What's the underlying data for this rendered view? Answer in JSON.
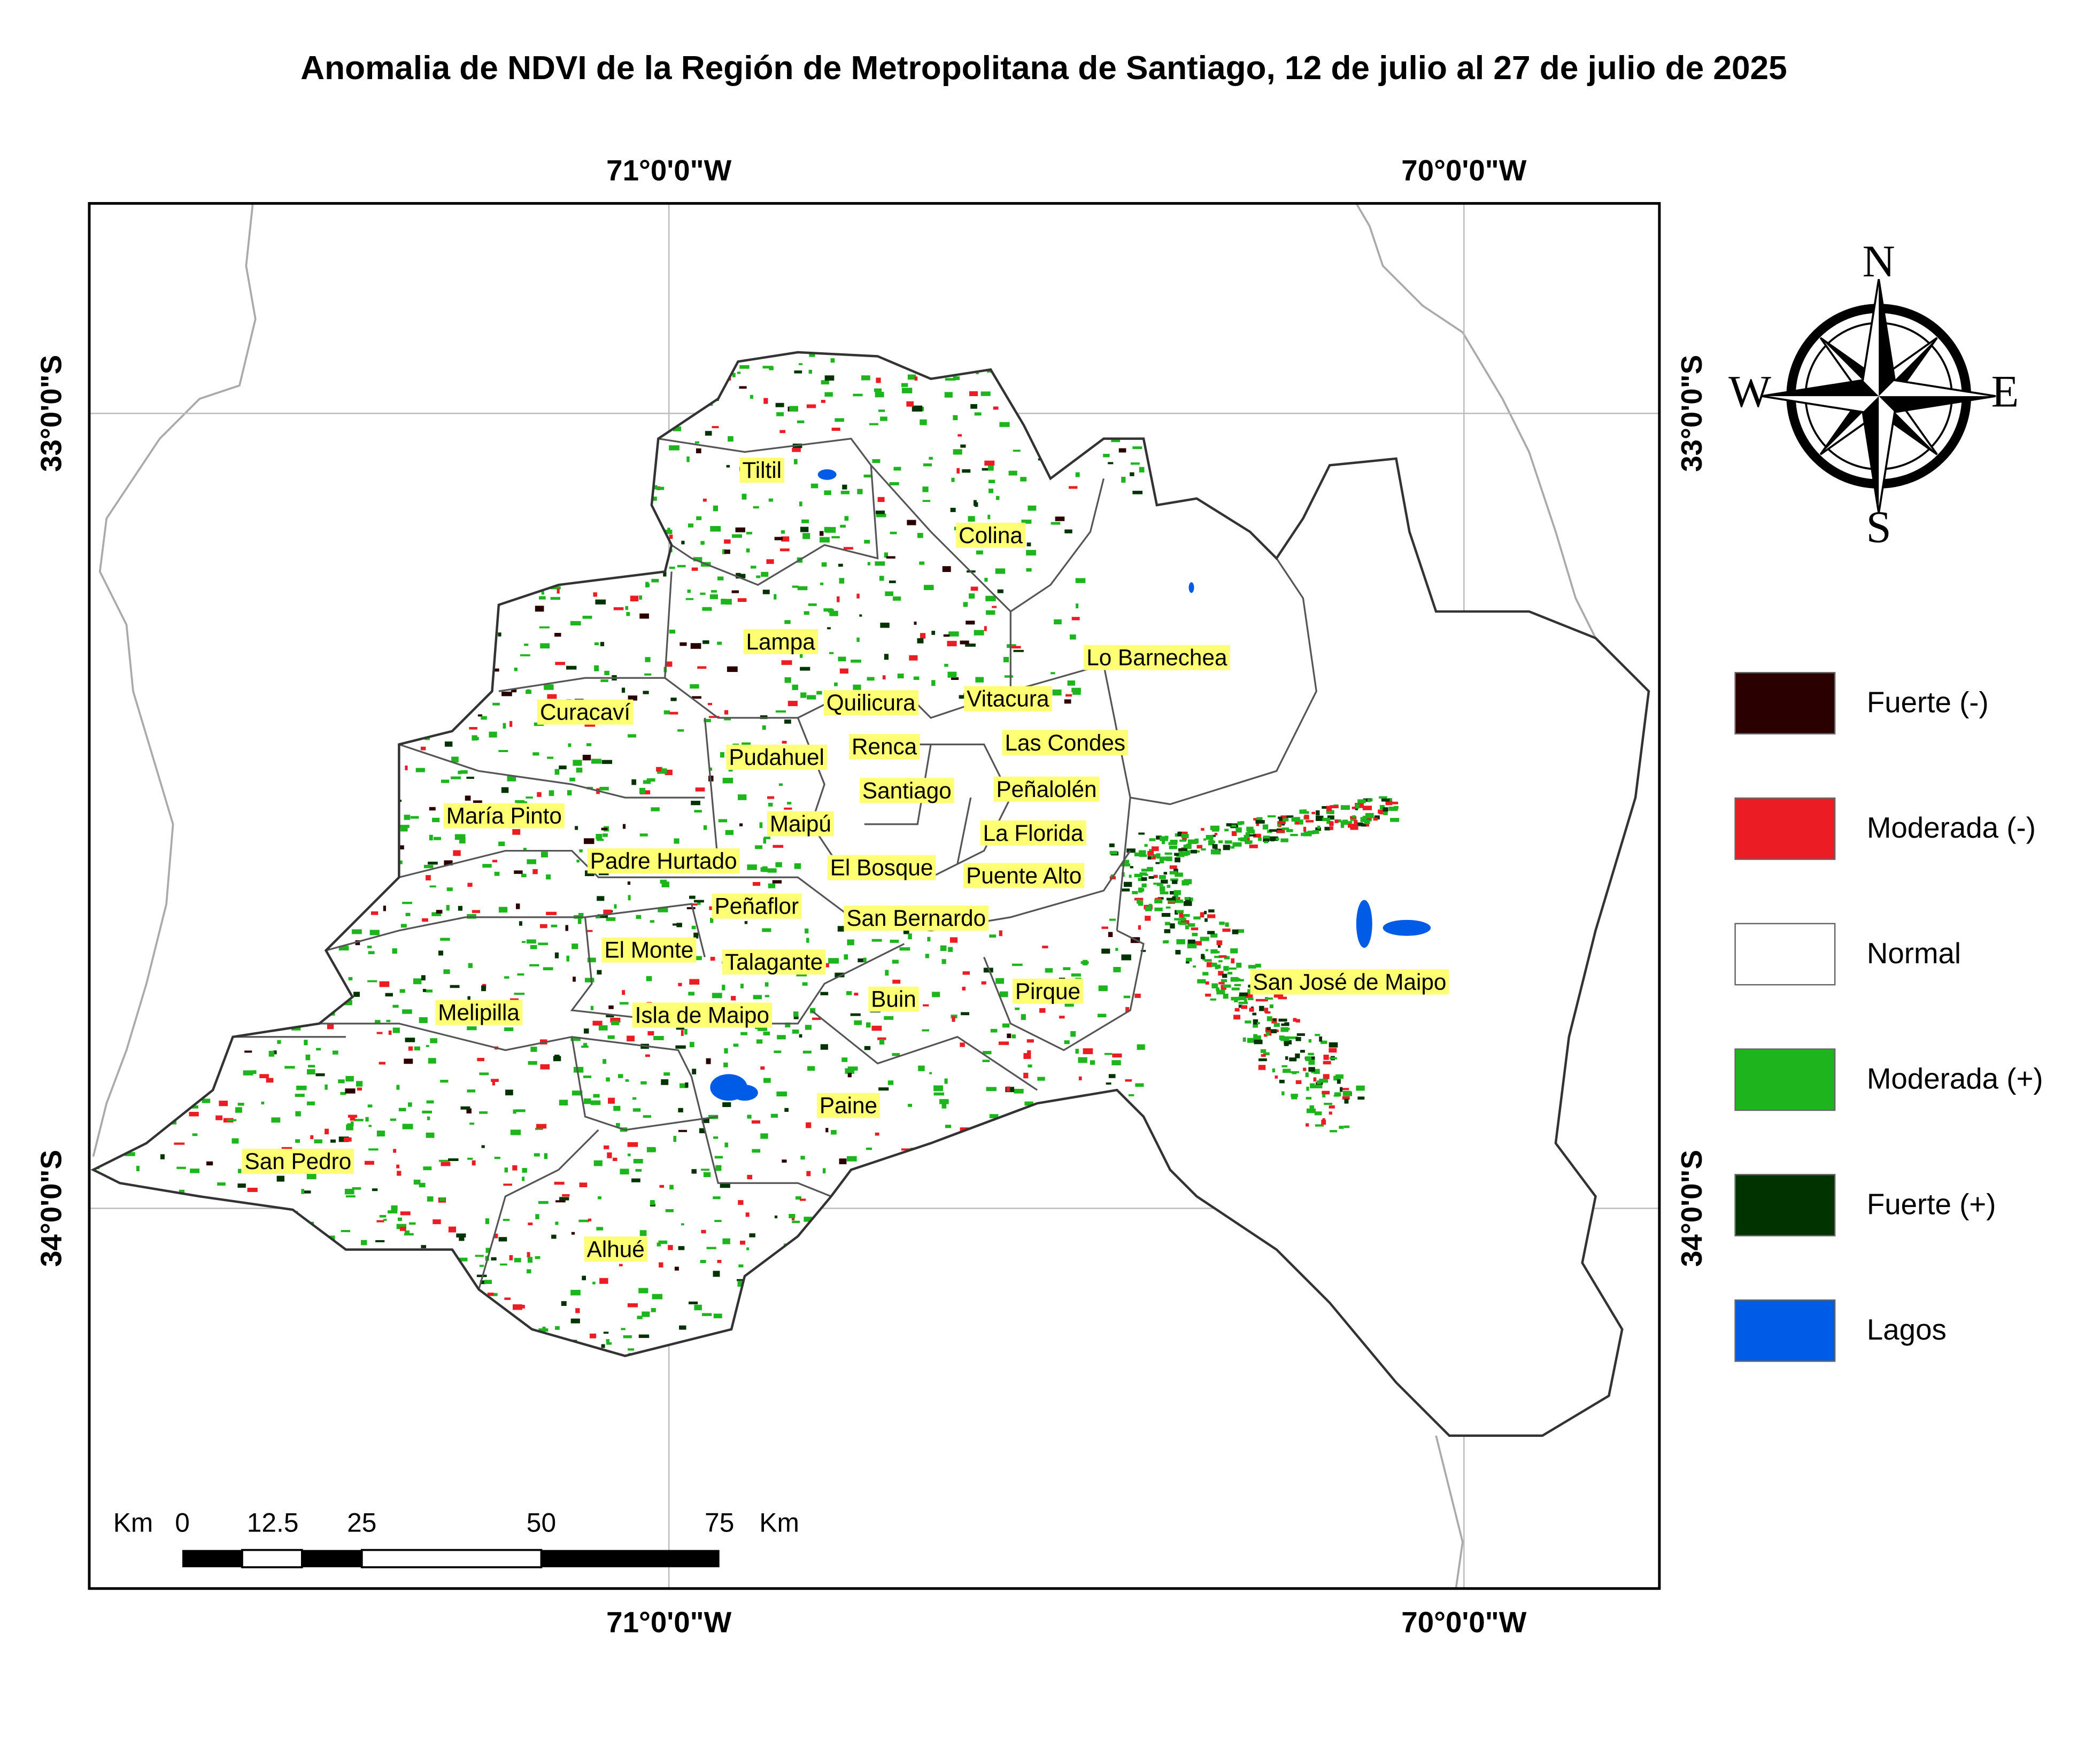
{
  "title": "Anomalia de NDVI de la Región de Metropolitana de Santiago, 12 de julio al 27 de julio de 2025",
  "graticule": {
    "top": [
      "71°0'0\"W",
      "70°0'0\"W"
    ],
    "bottom": [
      "71°0'0\"W",
      "70°0'0\"W"
    ],
    "left": [
      "33°0'0\"S",
      "34°0'0\"S"
    ],
    "right": [
      "33°0'0\"S",
      "34°0'0\"S"
    ]
  },
  "communes": [
    "Tiltil",
    "Colina",
    "Lampa",
    "Lo Barnechea",
    "Quilicura",
    "Vitacura",
    "Curacaví",
    "Las Condes",
    "Renca",
    "Pudahuel",
    "Santiago",
    "Peñalolén",
    "María Pinto",
    "Maipú",
    "La Florida",
    "Padre Hurtado",
    "El Bosque",
    "Puente Alto",
    "Peñaflor",
    "San Bernardo",
    "El Monte",
    "Talagante",
    "Pirque",
    "San José de Maipo",
    "Buin",
    "Melipilla",
    "Isla de Maipo",
    "Paine",
    "San Pedro",
    "Alhué"
  ],
  "legend": [
    {
      "label": "Fuerte (-)",
      "color": "#2b0000"
    },
    {
      "label": "Moderada (-)",
      "color": "#ec1c24"
    },
    {
      "label": "Normal",
      "color": "#ffffff"
    },
    {
      "label": "Moderada (+)",
      "color": "#1db41d"
    },
    {
      "label": "Fuerte (+)",
      "color": "#003300"
    },
    {
      "label": "Lagos",
      "color": "#005ce6"
    }
  ],
  "scale_bar": {
    "unit_left": "Km",
    "ticks": [
      "0",
      "12.5",
      "25",
      "50",
      "75"
    ],
    "unit_right": "Km"
  },
  "compass": {
    "n": "N",
    "s": "S",
    "w": "W",
    "e": "E"
  }
}
